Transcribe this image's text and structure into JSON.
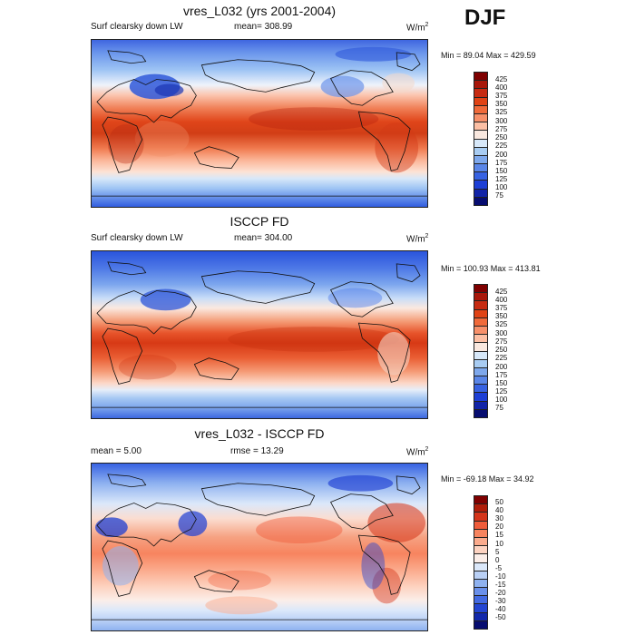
{
  "season": "DJF",
  "panels": [
    {
      "title": "vres_L032 (yrs 2001-2004)",
      "left": "Surf clearsky down LW",
      "center": "mean= 308.99",
      "units": "W/m",
      "units_sup": "2",
      "minmax": "Min =  89.04 Max = 429.59",
      "colorbar_labels": [
        "425",
        "400",
        "375",
        "350",
        "325",
        "300",
        "275",
        "250",
        "225",
        "200",
        "175",
        "150",
        "125",
        "100",
        "75"
      ],
      "colorbar_colors": [
        "#7f0000",
        "#a8170a",
        "#c72b12",
        "#e04315",
        "#f06a3a",
        "#f7906a",
        "#fcbfa4",
        "#f9e8df",
        "#d7e8f9",
        "#a8ccf2",
        "#7ea8ec",
        "#5a86e8",
        "#3762e2",
        "#1d3fd6",
        "#1224a8",
        "#070d70"
      ],
      "map_style": "abs1"
    },
    {
      "title": "ISCCP FD",
      "left": "Surf clearsky down LW",
      "center": "mean= 304.00",
      "units": "W/m",
      "units_sup": "2",
      "minmax": "Min = 100.93 Max = 413.81",
      "colorbar_labels": [
        "425",
        "400",
        "375",
        "350",
        "325",
        "300",
        "275",
        "250",
        "225",
        "200",
        "175",
        "150",
        "125",
        "100",
        "75"
      ],
      "colorbar_colors": [
        "#7f0000",
        "#a8170a",
        "#c72b12",
        "#e04315",
        "#f06a3a",
        "#f7906a",
        "#fcbfa4",
        "#f9e8df",
        "#d7e8f9",
        "#a8ccf2",
        "#7ea8ec",
        "#5a86e8",
        "#3762e2",
        "#1d3fd6",
        "#1224a8",
        "#070d70"
      ],
      "map_style": "abs2"
    },
    {
      "title": "vres_L032 - ISCCP FD",
      "left": "mean =   5.00",
      "center": "rmse =  13.29",
      "units": "W/m",
      "units_sup": "2",
      "minmax": "Min = -69.18 Max =  34.92",
      "colorbar_labels": [
        "50",
        "40",
        "30",
        "20",
        "15",
        "10",
        "5",
        "0",
        "-5",
        "-10",
        "-15",
        "-20",
        "-30",
        "-40",
        "-50"
      ],
      "colorbar_colors": [
        "#7f0000",
        "#b01d09",
        "#d5351a",
        "#ef5c3a",
        "#f7845f",
        "#fbab8d",
        "#fdd3c1",
        "#fbeee9",
        "#dbe8fa",
        "#b9d0f6",
        "#8fb2f0",
        "#6a90ea",
        "#436ae2",
        "#2345d2",
        "#1228ab",
        "#070d70"
      ],
      "map_style": "diff"
    }
  ]
}
